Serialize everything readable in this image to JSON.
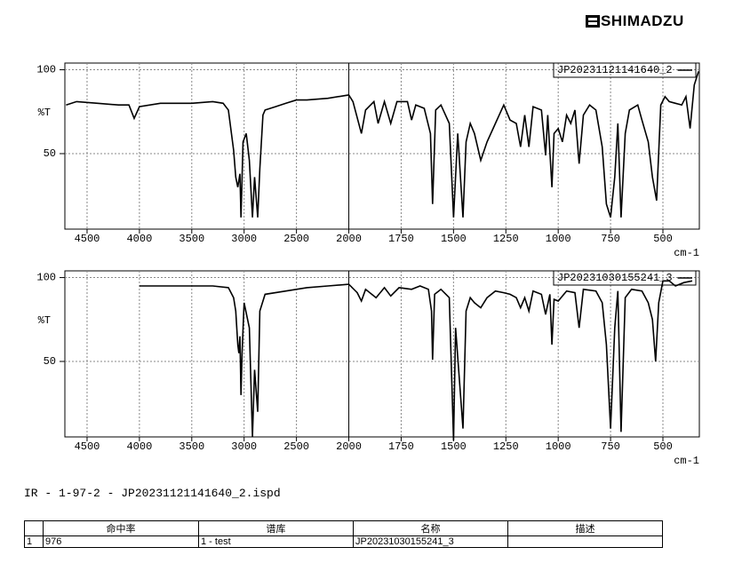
{
  "header": {
    "logo": "SHIMADZU"
  },
  "chart_data": [
    {
      "type": "line",
      "ylabel": "%T",
      "xlabel": "cm-1",
      "xlim": [
        4712,
        326
      ],
      "xticks": [
        4500,
        4000,
        3500,
        3000,
        2500,
        2000,
        1750,
        1500,
        1250,
        1000,
        750,
        500
      ],
      "ylim": [
        5,
        104
      ],
      "yticks": [
        50,
        100
      ],
      "grid": true,
      "x": [
        4700,
        4600,
        4400,
        4200,
        4100,
        4050,
        4000,
        3800,
        3500,
        3300,
        3200,
        3150,
        3100,
        3080,
        3060,
        3040,
        3030,
        3010,
        2980,
        2950,
        2920,
        2900,
        2870,
        2850,
        2820,
        2800,
        2700,
        2600,
        2500,
        2400,
        2200,
        2000,
        1980,
        1940,
        1920,
        1880,
        1860,
        1830,
        1800,
        1770,
        1720,
        1700,
        1680,
        1640,
        1610,
        1600,
        1585,
        1560,
        1520,
        1500,
        1480,
        1455,
        1440,
        1420,
        1400,
        1370,
        1340,
        1300,
        1260,
        1230,
        1200,
        1180,
        1160,
        1140,
        1120,
        1080,
        1060,
        1050,
        1030,
        1020,
        1000,
        980,
        960,
        940,
        920,
        900,
        880,
        850,
        820,
        790,
        770,
        750,
        730,
        715,
        700,
        680,
        660,
        620,
        600,
        570,
        550,
        530,
        510,
        490,
        470,
        440,
        410,
        390,
        370,
        350,
        330
      ],
      "series": [
        {
          "name": "JP20231121141640_2",
          "color": "#000000",
          "values": [
            79,
            81,
            80,
            79,
            79,
            71,
            78,
            80,
            80,
            81,
            80,
            76,
            52,
            36,
            30,
            38,
            12,
            57,
            62,
            46,
            12,
            36,
            12,
            41,
            73,
            76,
            78,
            80,
            82,
            82,
            83,
            85,
            81,
            62,
            76,
            81,
            68,
            81,
            68,
            81,
            81,
            70,
            79,
            77,
            62,
            20,
            76,
            79,
            68,
            12,
            62,
            12,
            57,
            68,
            62,
            46,
            57,
            68,
            79,
            70,
            68,
            54,
            73,
            54,
            78,
            76,
            49,
            73,
            30,
            62,
            65,
            57,
            73,
            68,
            76,
            44,
            73,
            79,
            76,
            54,
            20,
            12,
            36,
            68,
            12,
            62,
            76,
            79,
            70,
            57,
            36,
            22,
            79,
            84,
            81,
            80,
            79,
            84,
            65,
            91,
            99
          ]
        }
      ]
    },
    {
      "type": "line",
      "ylabel": "%T",
      "xlabel": "cm-1",
      "xlim": [
        4712,
        326
      ],
      "xticks": [
        4500,
        4000,
        3500,
        3000,
        2500,
        2000,
        1750,
        1500,
        1250,
        1000,
        750,
        500
      ],
      "ylim": [
        5,
        104
      ],
      "yticks": [
        50,
        100
      ],
      "grid": true,
      "x": [
        4000,
        3800,
        3500,
        3300,
        3150,
        3100,
        3080,
        3060,
        3050,
        3040,
        3030,
        3020,
        3000,
        2950,
        2920,
        2900,
        2870,
        2850,
        2800,
        2600,
        2400,
        2200,
        2000,
        1960,
        1940,
        1920,
        1870,
        1830,
        1800,
        1760,
        1700,
        1660,
        1620,
        1605,
        1600,
        1590,
        1560,
        1520,
        1500,
        1490,
        1455,
        1440,
        1420,
        1400,
        1370,
        1340,
        1300,
        1260,
        1230,
        1200,
        1180,
        1160,
        1140,
        1120,
        1080,
        1060,
        1040,
        1030,
        1020,
        1000,
        960,
        920,
        900,
        880,
        820,
        790,
        770,
        750,
        730,
        715,
        700,
        680,
        650,
        600,
        570,
        550,
        535,
        520,
        500,
        470,
        440,
        400,
        360
      ],
      "series": [
        {
          "name": "JP20231030155241_3",
          "color": "#000000",
          "values": [
            95,
            95,
            95,
            95,
            94,
            88,
            80,
            60,
            55,
            65,
            30,
            55,
            85,
            70,
            5,
            45,
            20,
            80,
            90,
            92,
            94,
            95,
            96,
            91,
            86,
            93,
            88,
            94,
            89,
            94,
            93,
            95,
            93,
            80,
            51,
            90,
            93,
            88,
            3,
            70,
            10,
            80,
            88,
            85,
            82,
            88,
            92,
            91,
            90,
            88,
            82,
            88,
            80,
            92,
            90,
            78,
            90,
            60,
            87,
            86,
            92,
            91,
            70,
            93,
            92,
            85,
            60,
            10,
            70,
            92,
            8,
            88,
            93,
            92,
            85,
            75,
            50,
            85,
            98,
            98,
            95,
            97,
            98
          ]
        }
      ]
    }
  ],
  "file_label": "IR - 1-97-2 - JP20231121141640_2.ispd",
  "table": {
    "columns": [
      "命中率",
      "谱库",
      "名称",
      "描述"
    ],
    "rows": [
      [
        "1",
        976,
        "1 - test",
        "JP20231030155241_3"
      ]
    ]
  }
}
